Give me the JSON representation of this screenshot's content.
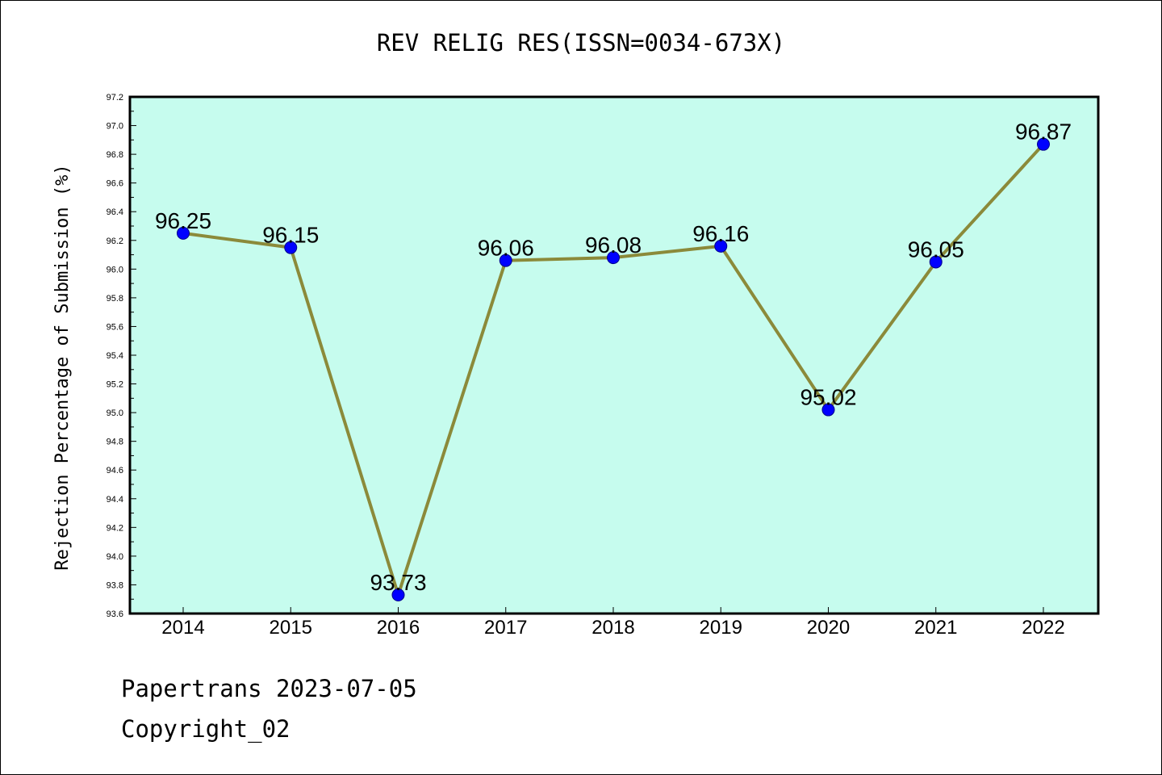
{
  "chart_data": {
    "type": "line",
    "title": "REV RELIG RES(ISSN=0034-673X)",
    "xlabel": "",
    "ylabel": "Rejection Percentage of Submission (%)",
    "categories": [
      "2014",
      "2015",
      "2016",
      "2017",
      "2018",
      "2019",
      "2020",
      "2021",
      "2022"
    ],
    "series": [
      {
        "values": [
          96.25,
          96.15,
          93.73,
          96.06,
          96.08,
          96.16,
          95.02,
          96.05,
          96.87
        ],
        "labels": [
          "96.25",
          "96.15",
          "93.73",
          "96.06",
          "96.08",
          "96.16",
          "95.02",
          "96.05",
          "96.87"
        ]
      }
    ],
    "ylim": [
      93.6,
      97.2
    ],
    "yticks": [
      "93.6",
      "93.8",
      "94.0",
      "94.2",
      "94.4",
      "94.6",
      "94.8",
      "95.0",
      "95.2",
      "95.4",
      "95.6",
      "95.8",
      "96.0",
      "96.2",
      "96.4",
      "96.6",
      "96.8",
      "97.0",
      "97.2"
    ],
    "grid": false,
    "colors": {
      "plot_background": "#c6fcee",
      "line": "#8b8a3a",
      "marker": "#0000ff"
    }
  },
  "footer": {
    "line1": "Papertrans 2023-07-05",
    "line2": "Copyright_02"
  }
}
